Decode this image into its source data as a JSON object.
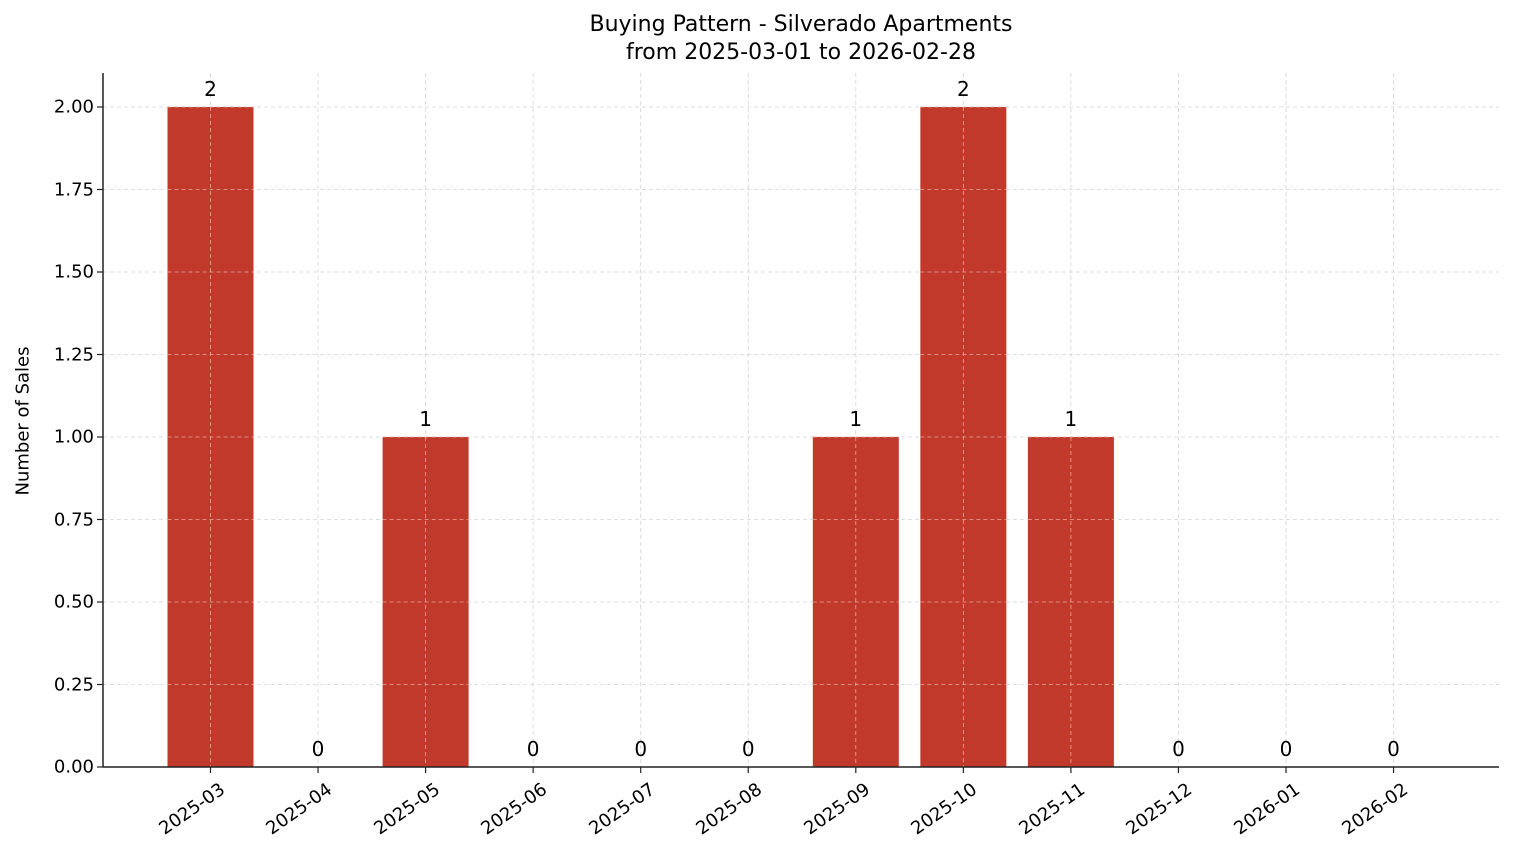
{
  "chart_data": {
    "type": "bar",
    "title": "Buying Pattern - Silverado Apartments",
    "subtitle": "from 2025-03-01 to 2026-02-28",
    "xlabel": "",
    "ylabel": "Number of Sales",
    "categories": [
      "2025-03",
      "2025-04",
      "2025-05",
      "2025-06",
      "2025-07",
      "2025-08",
      "2025-09",
      "2025-10",
      "2025-11",
      "2025-12",
      "2026-01",
      "2026-02"
    ],
    "values": [
      2,
      0,
      1,
      0,
      0,
      0,
      1,
      2,
      1,
      0,
      0,
      0
    ],
    "value_labels": [
      "2",
      "0",
      "1",
      "0",
      "0",
      "0",
      "1",
      "2",
      "1",
      "0",
      "0",
      "0"
    ],
    "ylim": [
      0,
      2.1
    ],
    "yticks": [
      "0.00",
      "0.25",
      "0.50",
      "0.75",
      "1.00",
      "1.25",
      "1.50",
      "1.75",
      "2.00"
    ],
    "grid": true,
    "legend": null,
    "bar_color": "#c0392b"
  }
}
